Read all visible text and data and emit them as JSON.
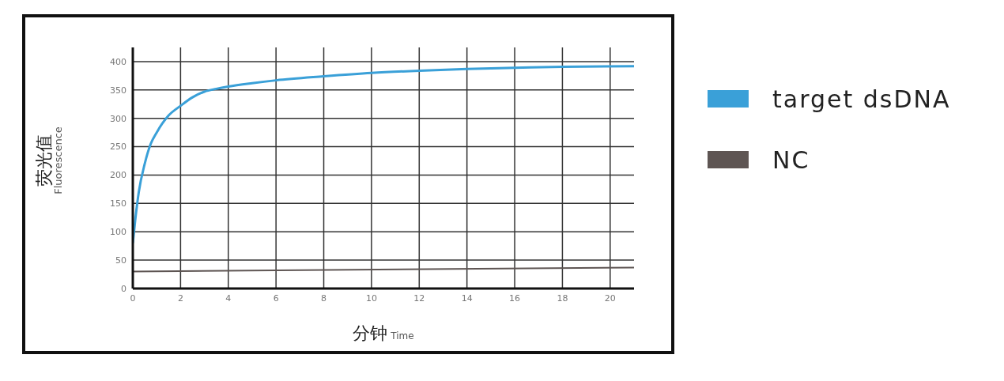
{
  "chart_data": {
    "type": "line",
    "xlabel": "分钟 Time",
    "ylabel": "荧光值 Fluorescence",
    "xlim": [
      0,
      21
    ],
    "xticks": [
      0,
      2,
      4,
      6,
      8,
      10,
      12,
      14,
      16,
      18,
      20
    ],
    "ylim": [
      0,
      425
    ],
    "yticks": [
      0,
      50,
      100,
      150,
      200,
      250,
      300,
      350,
      400
    ],
    "grid": true,
    "legend": "right",
    "marker": "none",
    "line_style": "solid",
    "series": [
      {
        "name": "target dsDNA",
        "color": "#3aa0d8",
        "x": [
          0,
          0.1,
          0.25,
          0.5,
          0.75,
          1,
          1.5,
          2,
          2.5,
          3,
          3.5,
          4,
          5,
          6,
          8,
          10,
          12,
          14,
          16,
          18,
          21
        ],
        "values": [
          80,
          120,
          170,
          220,
          255,
          275,
          305,
          322,
          337,
          347,
          352,
          356,
          362,
          367,
          374,
          380,
          384,
          387,
          389,
          391,
          392
        ]
      },
      {
        "name": "NC",
        "color": "#5e5553",
        "x": [
          0,
          21
        ],
        "values": [
          30,
          37
        ]
      }
    ]
  }
}
